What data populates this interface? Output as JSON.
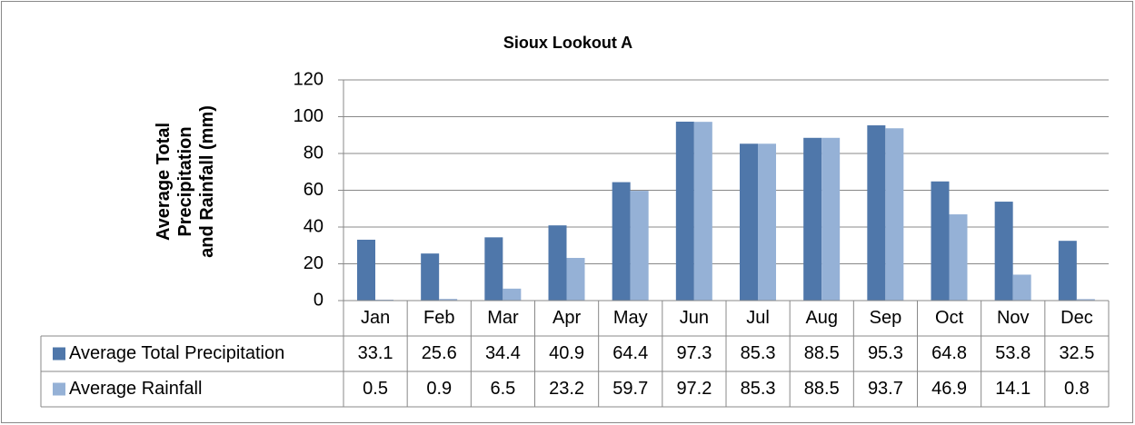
{
  "chart_data": {
    "type": "bar",
    "title": "Sioux Lookout A",
    "y_label": [
      "Average Total",
      "Precipitation",
      "and Rainfall (mm)"
    ],
    "categories": [
      "Jan",
      "Feb",
      "Mar",
      "Apr",
      "May",
      "Jun",
      "Jul",
      "Aug",
      "Sep",
      "Oct",
      "Nov",
      "Dec"
    ],
    "series": [
      {
        "name": "Average Total Precipitation",
        "color": "#4f77aa",
        "values": [
          33.1,
          25.6,
          34.4,
          40.9,
          64.4,
          97.3,
          85.3,
          88.5,
          95.3,
          64.8,
          53.8,
          32.5
        ]
      },
      {
        "name": "Average Rainfall",
        "color": "#95b1d6",
        "values": [
          0.5,
          0.9,
          6.5,
          23.2,
          59.7,
          97.2,
          85.3,
          88.5,
          93.7,
          46.9,
          14.1,
          0.8
        ]
      }
    ],
    "ylim": [
      0,
      120
    ],
    "yticks": [
      0,
      20,
      40,
      60,
      80,
      100,
      120
    ],
    "grid": true,
    "data_table": true
  }
}
